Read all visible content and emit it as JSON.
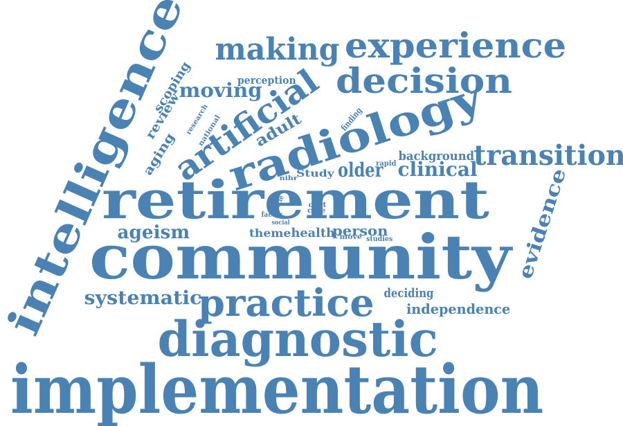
{
  "color": "#4a82b4",
  "words": [
    {
      "text": "implementation"
    },
    {
      "text": "community"
    },
    {
      "text": "retirement"
    },
    {
      "text": "intelligence"
    },
    {
      "text": "diagnostic"
    },
    {
      "text": "radiology"
    },
    {
      "text": "practice"
    },
    {
      "text": "experience"
    },
    {
      "text": "decision"
    },
    {
      "text": "artificial"
    },
    {
      "text": "making"
    },
    {
      "text": "transition"
    },
    {
      "text": "evidence"
    },
    {
      "text": "systematic"
    },
    {
      "text": "moving"
    },
    {
      "text": "ageism"
    },
    {
      "text": "independence"
    },
    {
      "text": "clinical"
    },
    {
      "text": "older"
    },
    {
      "text": "person"
    },
    {
      "text": "health"
    },
    {
      "text": "theme"
    },
    {
      "text": "adult"
    },
    {
      "text": "deciding"
    },
    {
      "text": "background"
    },
    {
      "text": "scoping"
    },
    {
      "text": "review"
    },
    {
      "text": "aging"
    },
    {
      "text": "perception"
    },
    {
      "text": "research"
    },
    {
      "text": "national"
    },
    {
      "text": "finding"
    },
    {
      "text": "rapid"
    },
    {
      "text": "Study"
    },
    {
      "text": "nihr"
    },
    {
      "text": "cost"
    },
    {
      "text": "care"
    },
    {
      "text": "article"
    },
    {
      "text": "factor"
    },
    {
      "text": "social"
    },
    {
      "text": "move"
    },
    {
      "text": "studies"
    }
  ]
}
